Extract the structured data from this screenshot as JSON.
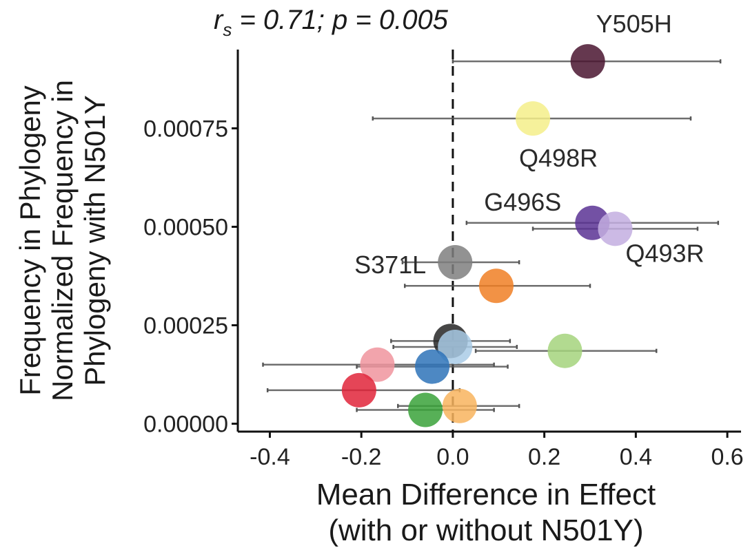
{
  "chart_data": {
    "type": "scatter",
    "stat": {
      "r_symbol": "r",
      "r_sub": "s",
      "r_value": " = 0.71; ",
      "p_text": "p = 0.005"
    },
    "xlabel_lines": [
      "Mean Difference in Effect",
      "(with or without N501Y)"
    ],
    "ylabel_lines": [
      "Frequency in Phylogeny",
      "Normalized Frequency in",
      "Phylogeny with N501Y"
    ],
    "xlim": [
      -0.47,
      0.63
    ],
    "ylim": [
      -2e-05,
      0.00095
    ],
    "x_ticks": [
      -0.4,
      -0.2,
      0.0,
      0.2,
      0.4,
      0.6
    ],
    "x_tick_labels": [
      "-0.4",
      "-0.2",
      "0.0",
      "0.2",
      "0.4",
      "0.6"
    ],
    "y_ticks": [
      0.0,
      0.00025,
      0.0005,
      0.00075
    ],
    "y_tick_labels": [
      "0.00000",
      "0.00025",
      "0.00050",
      "0.00075"
    ],
    "reference_line_x": 0,
    "points": [
      {
        "label": "Y505H",
        "x": 0.295,
        "y": 0.00092,
        "xmin": 0.0,
        "xmax": 0.585,
        "color": "#4a1530"
      },
      {
        "label": "Q498R",
        "x": 0.175,
        "y": 0.000775,
        "xmin": -0.175,
        "xmax": 0.52,
        "color": "#f5ee8a"
      },
      {
        "label": "G496S",
        "x": 0.305,
        "y": 0.00051,
        "xmin": 0.03,
        "xmax": 0.58,
        "color": "#5b3294"
      },
      {
        "label": "Q493R",
        "x": 0.355,
        "y": 0.000495,
        "xmin": 0.175,
        "xmax": 0.535,
        "color": "#c3aee0"
      },
      {
        "label": "S371L",
        "x": 0.005,
        "y": 0.00041,
        "xmin": -0.11,
        "xmax": 0.145,
        "color": "#7f7f7f"
      },
      {
        "label": "",
        "x": 0.095,
        "y": 0.00035,
        "xmin": -0.105,
        "xmax": 0.3,
        "color": "#f07f24"
      },
      {
        "label": "",
        "x": -0.005,
        "y": 0.00021,
        "xmin": -0.135,
        "xmax": 0.125,
        "color": "#262626"
      },
      {
        "label": "",
        "x": 0.005,
        "y": 0.000195,
        "xmin": -0.13,
        "xmax": 0.14,
        "color": "#a9cbe6"
      },
      {
        "label": "",
        "x": 0.245,
        "y": 0.000185,
        "xmin": 0.05,
        "xmax": 0.445,
        "color": "#a5d47d"
      },
      {
        "label": "",
        "x": -0.165,
        "y": 0.00015,
        "xmin": -0.415,
        "xmax": 0.09,
        "color": "#f0949e"
      },
      {
        "label": "",
        "x": -0.045,
        "y": 0.000145,
        "xmin": -0.21,
        "xmax": 0.12,
        "color": "#2e73b8"
      },
      {
        "label": "",
        "x": -0.205,
        "y": 8.5e-05,
        "xmin": -0.405,
        "xmax": 0.015,
        "color": "#e0243a"
      },
      {
        "label": "",
        "x": 0.015,
        "y": 4.5e-05,
        "xmin": -0.12,
        "xmax": 0.145,
        "color": "#f8b45e"
      },
      {
        "label": "",
        "x": -0.06,
        "y": 3.5e-05,
        "xmin": -0.21,
        "xmax": 0.09,
        "color": "#3aa23a"
      }
    ]
  }
}
